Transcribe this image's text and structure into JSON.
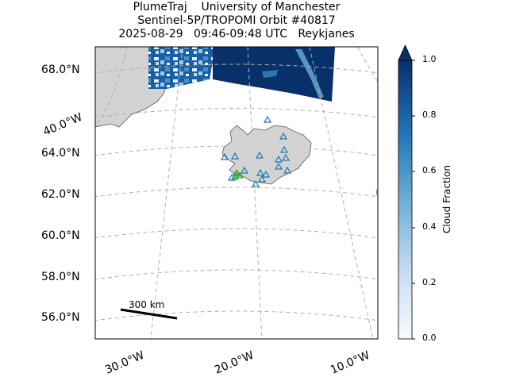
{
  "title": {
    "line1": "PlumeTraj    University of Manchester",
    "line2": "Sentinel-5P/TROPOMI Orbit #40817",
    "line3": "2025-08-29   09:46-09:48 UTC   Reykjanes"
  },
  "map": {
    "lat_labels": [
      "68.0°N",
      "64.0°N",
      "62.0°N",
      "60.0°N",
      "58.0°N",
      "56.0°N"
    ],
    "lon_labels": [
      "40.0°W",
      "30.0°W",
      "20.0°W",
      "10.0°W"
    ],
    "scale_bar_label": "300 km",
    "land_color": "#d3d3d3",
    "grid_color": "#b0b0b0",
    "station_color": "#1f77b4",
    "vent_color": "#2ca02c",
    "projection": "conic",
    "gridlines": true
  },
  "colorbar": {
    "label": "Cloud Fraction",
    "ticks": [
      "1.0",
      "0.8",
      "0.6",
      "0.4",
      "0.2",
      "0.0"
    ],
    "min": 0.0,
    "max": 1.0,
    "colormap": "Blues",
    "extend": "max"
  }
}
